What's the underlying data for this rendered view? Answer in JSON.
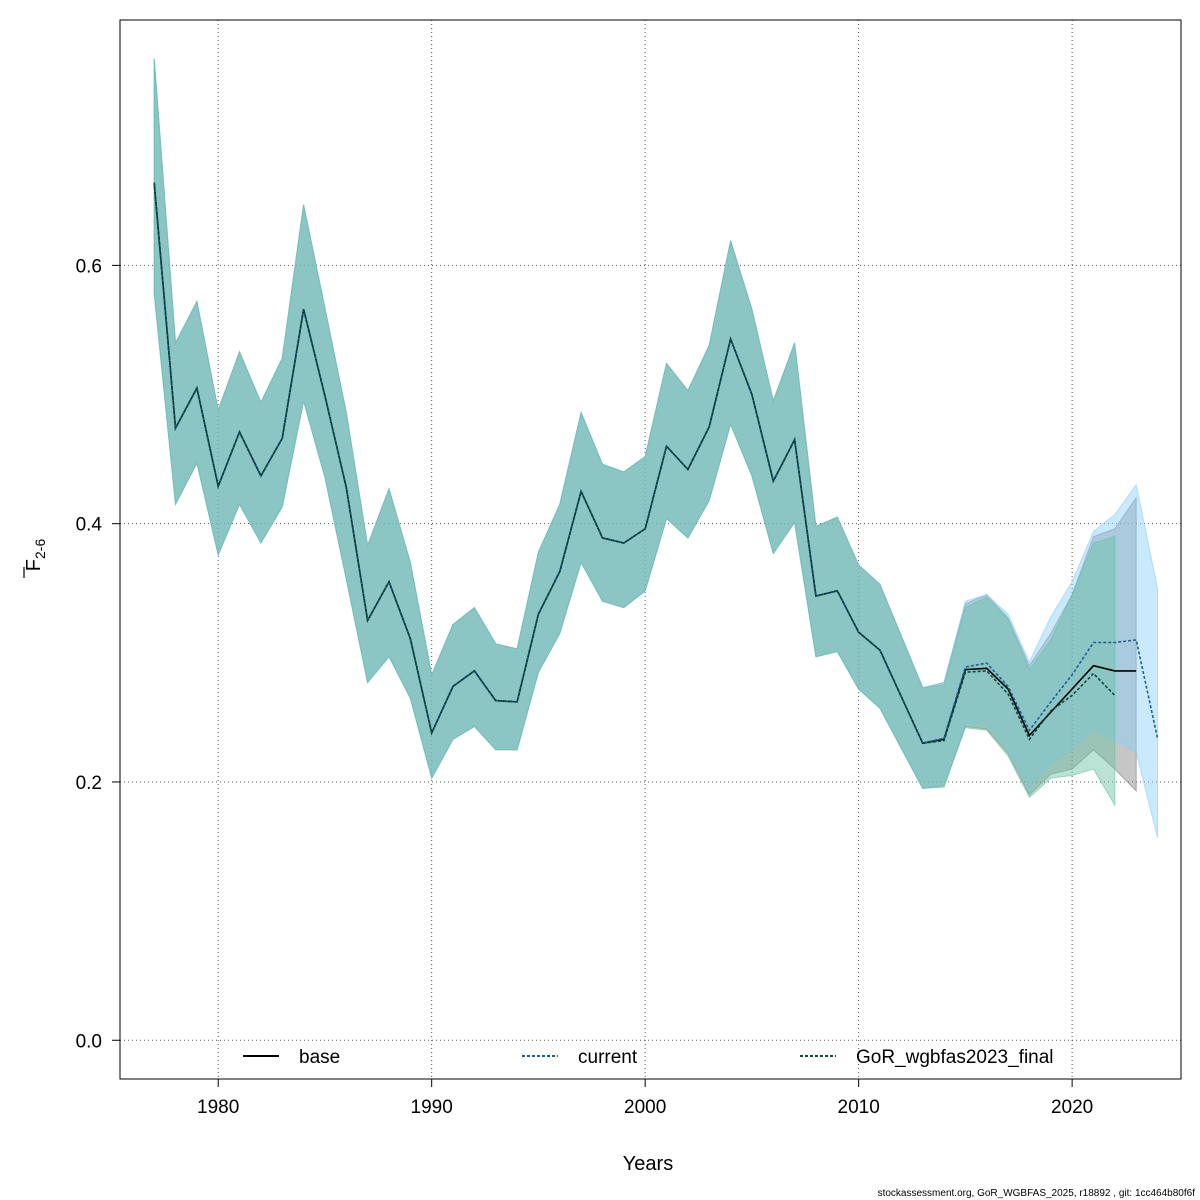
{
  "chart_data": {
    "type": "line",
    "xlabel": "Years",
    "ylabel_main": "F",
    "ylabel_sub": "2-6",
    "xlim": [
      1975.4,
      2025.1
    ],
    "ylim": [
      -0.03,
      0.79
    ],
    "xticks": [
      1980,
      1990,
      2000,
      2010,
      2020
    ],
    "xtick_labels": [
      "1980",
      "1990",
      "2000",
      "2010",
      "2020"
    ],
    "yticks": [
      0.0,
      0.2,
      0.4,
      0.6
    ],
    "ytick_labels": [
      "0.0",
      "0.2",
      "0.4",
      "0.6"
    ],
    "grid": true,
    "legend_position": "bottom",
    "series": [
      {
        "name": "base",
        "color": "#000000",
        "band_color": "#808080",
        "line_style": "solid",
        "x": [
          1977,
          1978,
          1979,
          1980,
          1981,
          1982,
          1983,
          1984,
          1985,
          1986,
          1987,
          1988,
          1989,
          1990,
          1991,
          1992,
          1993,
          1994,
          1995,
          1996,
          1997,
          1998,
          1999,
          2000,
          2001,
          2002,
          2003,
          2004,
          2005,
          2006,
          2007,
          2008,
          2009,
          2010,
          2011,
          2012,
          2013,
          2014,
          2015,
          2016,
          2017,
          2018,
          2019,
          2020,
          2021,
          2022,
          2023
        ],
        "y": [
          0.664,
          0.474,
          0.505,
          0.429,
          0.471,
          0.437,
          0.466,
          0.566,
          0.499,
          0.428,
          0.325,
          0.355,
          0.311,
          0.238,
          0.274,
          0.286,
          0.263,
          0.262,
          0.33,
          0.363,
          0.425,
          0.389,
          0.385,
          0.396,
          0.46,
          0.442,
          0.475,
          0.543,
          0.5,
          0.433,
          0.465,
          0.344,
          0.348,
          0.316,
          0.302,
          0.266,
          0.23,
          0.233,
          0.287,
          0.288,
          0.272,
          0.236,
          0.254,
          0.272,
          0.29,
          0.286,
          0.286
        ],
        "lower": [
          0.578,
          0.415,
          0.447,
          0.376,
          0.415,
          0.385,
          0.413,
          0.495,
          0.436,
          0.357,
          0.277,
          0.297,
          0.265,
          0.203,
          0.233,
          0.243,
          0.225,
          0.225,
          0.285,
          0.315,
          0.37,
          0.34,
          0.335,
          0.348,
          0.404,
          0.389,
          0.418,
          0.477,
          0.437,
          0.377,
          0.401,
          0.297,
          0.301,
          0.272,
          0.257,
          0.226,
          0.195,
          0.197,
          0.243,
          0.241,
          0.222,
          0.19,
          0.206,
          0.21,
          0.225,
          0.21,
          0.193
        ],
        "upper": [
          0.76,
          0.54,
          0.572,
          0.488,
          0.533,
          0.494,
          0.528,
          0.647,
          0.567,
          0.486,
          0.383,
          0.427,
          0.37,
          0.283,
          0.322,
          0.335,
          0.307,
          0.303,
          0.378,
          0.415,
          0.486,
          0.446,
          0.44,
          0.452,
          0.524,
          0.503,
          0.538,
          0.619,
          0.566,
          0.495,
          0.54,
          0.398,
          0.405,
          0.368,
          0.353,
          0.313,
          0.273,
          0.277,
          0.338,
          0.345,
          0.327,
          0.29,
          0.315,
          0.345,
          0.39,
          0.396,
          0.42
        ]
      },
      {
        "name": "current",
        "color": "#1f5f96",
        "band_color": "#87cefa",
        "line_style": "dotted",
        "x": [
          1977,
          1978,
          1979,
          1980,
          1981,
          1982,
          1983,
          1984,
          1985,
          1986,
          1987,
          1988,
          1989,
          1990,
          1991,
          1992,
          1993,
          1994,
          1995,
          1996,
          1997,
          1998,
          1999,
          2000,
          2001,
          2002,
          2003,
          2004,
          2005,
          2006,
          2007,
          2008,
          2009,
          2010,
          2011,
          2012,
          2013,
          2014,
          2015,
          2016,
          2017,
          2018,
          2019,
          2020,
          2021,
          2022,
          2023,
          2024
        ],
        "y": [
          0.663,
          0.474,
          0.505,
          0.429,
          0.471,
          0.437,
          0.466,
          0.566,
          0.499,
          0.428,
          0.325,
          0.355,
          0.311,
          0.238,
          0.274,
          0.286,
          0.263,
          0.262,
          0.33,
          0.363,
          0.425,
          0.389,
          0.385,
          0.396,
          0.46,
          0.442,
          0.475,
          0.543,
          0.5,
          0.433,
          0.465,
          0.344,
          0.348,
          0.316,
          0.302,
          0.266,
          0.23,
          0.234,
          0.289,
          0.292,
          0.274,
          0.24,
          0.262,
          0.283,
          0.308,
          0.308,
          0.31,
          0.234
        ],
        "lower": [
          0.578,
          0.415,
          0.447,
          0.376,
          0.415,
          0.385,
          0.413,
          0.495,
          0.436,
          0.357,
          0.277,
          0.297,
          0.265,
          0.203,
          0.233,
          0.243,
          0.225,
          0.225,
          0.285,
          0.315,
          0.37,
          0.34,
          0.335,
          0.348,
          0.404,
          0.389,
          0.418,
          0.477,
          0.437,
          0.377,
          0.401,
          0.297,
          0.301,
          0.272,
          0.257,
          0.226,
          0.195,
          0.198,
          0.245,
          0.245,
          0.225,
          0.195,
          0.214,
          0.225,
          0.24,
          0.232,
          0.223,
          0.157
        ],
        "upper": [
          0.76,
          0.54,
          0.572,
          0.488,
          0.533,
          0.494,
          0.528,
          0.647,
          0.567,
          0.486,
          0.383,
          0.427,
          0.37,
          0.283,
          0.322,
          0.335,
          0.307,
          0.303,
          0.378,
          0.415,
          0.486,
          0.446,
          0.44,
          0.452,
          0.524,
          0.503,
          0.538,
          0.619,
          0.566,
          0.495,
          0.54,
          0.398,
          0.405,
          0.368,
          0.353,
          0.313,
          0.273,
          0.277,
          0.34,
          0.345,
          0.33,
          0.293,
          0.328,
          0.355,
          0.394,
          0.407,
          0.43,
          0.35
        ]
      },
      {
        "name": "GoR_wgbfas2023_final",
        "color": "#0b4a3c",
        "band_color": "#66c2a5",
        "line_style": "dotted",
        "x": [
          1977,
          1978,
          1979,
          1980,
          1981,
          1982,
          1983,
          1984,
          1985,
          1986,
          1987,
          1988,
          1989,
          1990,
          1991,
          1992,
          1993,
          1994,
          1995,
          1996,
          1997,
          1998,
          1999,
          2000,
          2001,
          2002,
          2003,
          2004,
          2005,
          2006,
          2007,
          2008,
          2009,
          2010,
          2011,
          2012,
          2013,
          2014,
          2015,
          2016,
          2017,
          2018,
          2019,
          2020,
          2021,
          2022
        ],
        "y": [
          0.664,
          0.474,
          0.505,
          0.429,
          0.471,
          0.437,
          0.466,
          0.566,
          0.499,
          0.428,
          0.325,
          0.355,
          0.311,
          0.238,
          0.274,
          0.286,
          0.263,
          0.262,
          0.33,
          0.363,
          0.425,
          0.389,
          0.385,
          0.396,
          0.46,
          0.442,
          0.475,
          0.543,
          0.5,
          0.433,
          0.465,
          0.344,
          0.348,
          0.316,
          0.302,
          0.266,
          0.23,
          0.232,
          0.285,
          0.286,
          0.268,
          0.233,
          0.255,
          0.267,
          0.284,
          0.267
        ],
        "lower": [
          0.578,
          0.415,
          0.447,
          0.376,
          0.415,
          0.385,
          0.413,
          0.495,
          0.436,
          0.357,
          0.277,
          0.297,
          0.265,
          0.203,
          0.233,
          0.243,
          0.225,
          0.225,
          0.285,
          0.315,
          0.37,
          0.34,
          0.335,
          0.348,
          0.404,
          0.389,
          0.418,
          0.477,
          0.437,
          0.377,
          0.401,
          0.297,
          0.301,
          0.272,
          0.257,
          0.226,
          0.195,
          0.196,
          0.242,
          0.24,
          0.22,
          0.188,
          0.203,
          0.205,
          0.21,
          0.182
        ],
        "upper": [
          0.76,
          0.54,
          0.572,
          0.488,
          0.533,
          0.494,
          0.528,
          0.647,
          0.567,
          0.486,
          0.383,
          0.427,
          0.37,
          0.283,
          0.322,
          0.335,
          0.307,
          0.303,
          0.378,
          0.415,
          0.486,
          0.446,
          0.44,
          0.452,
          0.524,
          0.503,
          0.538,
          0.619,
          0.566,
          0.495,
          0.54,
          0.398,
          0.405,
          0.368,
          0.353,
          0.313,
          0.273,
          0.275,
          0.335,
          0.343,
          0.326,
          0.287,
          0.31,
          0.345,
          0.385,
          0.39
        ]
      }
    ]
  },
  "footer": {
    "source_note": "stockassessment.org, GoR_WGBFAS_2025, r18892 , git: 1cc464b80f6f"
  }
}
